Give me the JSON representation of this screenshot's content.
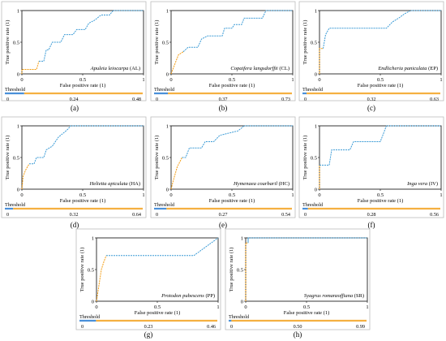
{
  "chart_data": [
    {
      "type": "line",
      "species": "Apuleia leiocarpa",
      "code": "(AL)",
      "panel_label": "(a)",
      "xlabel": "False positive rate (1)",
      "ylabel": "True positive rate (1)",
      "xlim": [
        0,
        1
      ],
      "ylim": [
        0,
        1
      ],
      "x_ticks": [
        "0",
        "0.5",
        "1"
      ],
      "y_ticks": [
        "0",
        "0.5",
        "1"
      ],
      "threshold_label": "Threshold",
      "threshold_ticks": [
        "0",
        "0.24",
        "0.48"
      ],
      "threshold_split": 0.14,
      "roc_points": [
        [
          0,
          0
        ],
        [
          0,
          0.07
        ],
        [
          0.08,
          0.07
        ],
        [
          0.12,
          0.07
        ],
        [
          0.14,
          0.2
        ],
        [
          0.18,
          0.2
        ],
        [
          0.2,
          0.38
        ],
        [
          0.22,
          0.38
        ],
        [
          0.25,
          0.5
        ],
        [
          0.32,
          0.5
        ],
        [
          0.35,
          0.62
        ],
        [
          0.42,
          0.62
        ],
        [
          0.45,
          0.7
        ],
        [
          0.52,
          0.7
        ],
        [
          0.55,
          0.8
        ],
        [
          0.6,
          0.85
        ],
        [
          0.65,
          0.93
        ],
        [
          0.72,
          0.93
        ],
        [
          0.75,
          1
        ],
        [
          1,
          1
        ]
      ]
    },
    {
      "type": "line",
      "species": "Copaifera langsdorffii",
      "code": "(CL)",
      "panel_label": "(b)",
      "xlabel": "False positive rate (1)",
      "ylabel": "True positive rate (1)",
      "xlim": [
        0,
        1
      ],
      "ylim": [
        0,
        1
      ],
      "x_ticks": [
        "0",
        "0.5",
        "1"
      ],
      "y_ticks": [
        "0",
        "0.5",
        "1"
      ],
      "threshold_label": "Threshold",
      "threshold_ticks": [
        "0",
        "0.37",
        "0.73"
      ],
      "threshold_split": 0.1,
      "roc_points": [
        [
          0,
          0
        ],
        [
          0.02,
          0.1
        ],
        [
          0.04,
          0.2
        ],
        [
          0.06,
          0.3
        ],
        [
          0.1,
          0.35
        ],
        [
          0.14,
          0.42
        ],
        [
          0.22,
          0.42
        ],
        [
          0.25,
          0.55
        ],
        [
          0.3,
          0.6
        ],
        [
          0.42,
          0.6
        ],
        [
          0.44,
          0.72
        ],
        [
          0.5,
          0.72
        ],
        [
          0.52,
          0.78
        ],
        [
          0.58,
          0.78
        ],
        [
          0.6,
          0.88
        ],
        [
          0.75,
          0.88
        ],
        [
          0.78,
          1
        ],
        [
          1,
          1
        ]
      ]
    },
    {
      "type": "line",
      "species": "Endlicheria paniculata",
      "code": "(EP)",
      "panel_label": "(c)",
      "xlabel": "False positive rate (1)",
      "ylabel": "True positive rate (1)",
      "xlim": [
        0,
        1
      ],
      "ylim": [
        0,
        1
      ],
      "x_ticks": [
        "0",
        "0.5",
        "1"
      ],
      "y_ticks": [
        "0",
        "0.5",
        "1"
      ],
      "threshold_label": "Threshold",
      "threshold_ticks": [
        "0",
        "0.32",
        "0.63"
      ],
      "threshold_split": 0.03,
      "roc_points": [
        [
          0,
          0
        ],
        [
          0,
          0.4
        ],
        [
          0.03,
          0.4
        ],
        [
          0.05,
          0.62
        ],
        [
          0.08,
          0.72
        ],
        [
          0.55,
          0.72
        ],
        [
          0.6,
          0.82
        ],
        [
          0.65,
          0.88
        ],
        [
          0.7,
          0.95
        ],
        [
          0.75,
          1
        ],
        [
          1,
          1
        ]
      ]
    },
    {
      "type": "line",
      "species": "Helietta apiculata",
      "code": "(HA)",
      "panel_label": "(d)",
      "xlabel": "False positive rate (1)",
      "ylabel": "True positive rate (1)",
      "xlim": [
        0,
        1
      ],
      "ylim": [
        0,
        1
      ],
      "x_ticks": [
        "0",
        "0.5",
        "1"
      ],
      "y_ticks": [
        "0",
        "0.5",
        "1"
      ],
      "threshold_label": "Threshold",
      "threshold_ticks": [
        "0",
        "0.32",
        "0.64"
      ],
      "threshold_split": 0.06,
      "roc_points": [
        [
          0,
          0
        ],
        [
          0.01,
          0.2
        ],
        [
          0.03,
          0.3
        ],
        [
          0.06,
          0.4
        ],
        [
          0.1,
          0.4
        ],
        [
          0.12,
          0.5
        ],
        [
          0.18,
          0.5
        ],
        [
          0.2,
          0.62
        ],
        [
          0.25,
          0.68
        ],
        [
          0.3,
          0.82
        ],
        [
          0.35,
          0.9
        ],
        [
          0.38,
          0.95
        ],
        [
          0.4,
          1
        ],
        [
          1,
          1
        ]
      ]
    },
    {
      "type": "line",
      "species": "Hymenaea courbaril",
      "code": "(HC)",
      "panel_label": "(e)",
      "xlabel": "False positive rate (1)",
      "ylabel": "True positive rate (1)",
      "xlim": [
        0,
        1
      ],
      "ylim": [
        0,
        1
      ],
      "x_ticks": [
        "0",
        "0.5",
        "1"
      ],
      "y_ticks": [
        "0",
        "0.5",
        "1"
      ],
      "threshold_label": "Threshold",
      "threshold_ticks": [
        "0",
        "0.27",
        "0.54"
      ],
      "threshold_split": 0.09,
      "roc_points": [
        [
          0,
          0
        ],
        [
          0.02,
          0.15
        ],
        [
          0.05,
          0.35
        ],
        [
          0.09,
          0.5
        ],
        [
          0.12,
          0.5
        ],
        [
          0.15,
          0.65
        ],
        [
          0.25,
          0.65
        ],
        [
          0.28,
          0.75
        ],
        [
          0.35,
          0.75
        ],
        [
          0.4,
          0.85
        ],
        [
          0.55,
          0.92
        ],
        [
          0.6,
          1
        ],
        [
          1,
          1
        ]
      ]
    },
    {
      "type": "line",
      "species": "Inga vera",
      "code": "(IV)",
      "panel_label": "(f)",
      "xlabel": "False positive rate (1)",
      "ylabel": "True positive rate (1)",
      "xlim": [
        0,
        1
      ],
      "ylim": [
        0,
        1
      ],
      "x_ticks": [
        "0",
        "0.5",
        "1"
      ],
      "y_ticks": [
        "0",
        "0.5",
        "1"
      ],
      "threshold_label": "Threshold",
      "threshold_ticks": [
        "0",
        "0.28",
        "0.56"
      ],
      "threshold_split": 0.04,
      "roc_points": [
        [
          0,
          0
        ],
        [
          0,
          0.38
        ],
        [
          0.08,
          0.38
        ],
        [
          0.1,
          0.62
        ],
        [
          0.25,
          0.62
        ],
        [
          0.28,
          0.75
        ],
        [
          0.5,
          0.75
        ],
        [
          0.55,
          1
        ],
        [
          1,
          1
        ]
      ]
    },
    {
      "type": "line",
      "species": "Protodon pubescens",
      "code": "(PP)",
      "panel_label": "(g)",
      "xlabel": "False positive rate (1)",
      "ylabel": "True positive rate (1)",
      "xlim": [
        0,
        1
      ],
      "ylim": [
        0,
        1
      ],
      "x_ticks": [
        "0",
        "0.5",
        "1"
      ],
      "y_ticks": [
        "0",
        "0.5",
        "1"
      ],
      "threshold_label": "Threshold",
      "threshold_ticks": [
        "0",
        "0.23",
        "0.46"
      ],
      "threshold_split": 0.12,
      "roc_points": [
        [
          0,
          0
        ],
        [
          0.04,
          0.5
        ],
        [
          0.06,
          0.62
        ],
        [
          0.08,
          0.72
        ],
        [
          0.8,
          0.72
        ],
        [
          1,
          1
        ]
      ]
    },
    {
      "type": "line",
      "species": "Syagrus romanzoffiana",
      "code": "(SR)",
      "panel_label": "(h)",
      "xlabel": "False positive rate (1)",
      "ylabel": "True positive rate (1)",
      "xlim": [
        0,
        1
      ],
      "ylim": [
        0,
        1
      ],
      "x_ticks": [
        "0",
        "0.5",
        "1"
      ],
      "y_ticks": [
        "0",
        "0.5",
        "1"
      ],
      "threshold_label": "Threshold",
      "threshold_ticks": [
        "0",
        "0.50",
        "0.99"
      ],
      "threshold_split": 0.02,
      "roc_points": [
        [
          0,
          0
        ],
        [
          0,
          0.92
        ],
        [
          0.02,
          0.92
        ],
        [
          0.02,
          1
        ],
        [
          1,
          1
        ]
      ]
    }
  ],
  "colors": {
    "roc_blue": "#3b9bd6",
    "roc_orange": "#f39c12",
    "threshold_blue": "#4a90d9",
    "threshold_orange": "#f5b041",
    "axis": "#222222",
    "panel_border": "#bdbdbd"
  }
}
